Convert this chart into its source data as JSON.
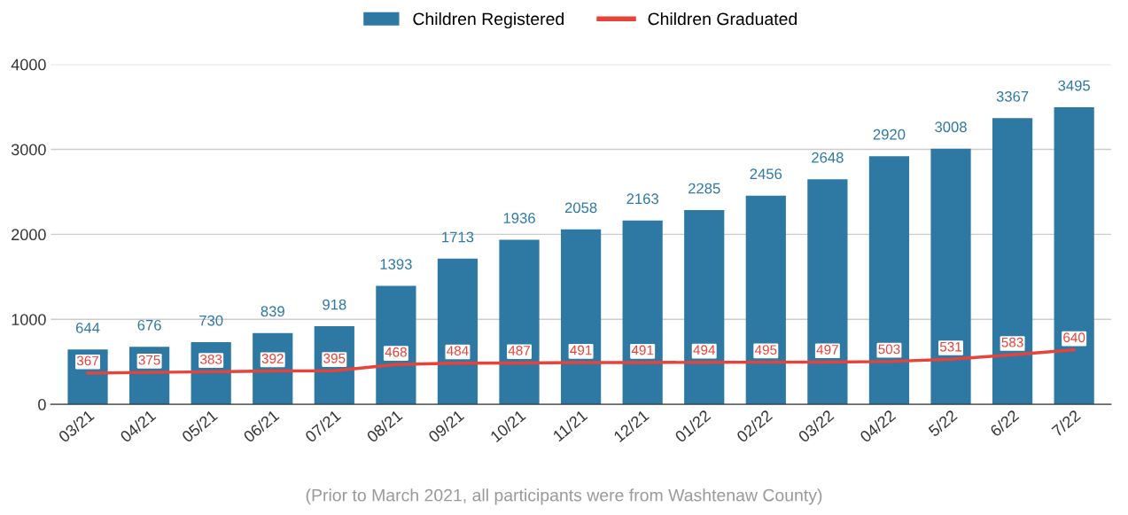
{
  "chart_data": {
    "type": "bar",
    "categories": [
      "03/21",
      "04/21",
      "05/21",
      "06/21",
      "07/21",
      "08/21",
      "09/21",
      "10/21",
      "11/21",
      "12/21",
      "01/22",
      "02/22",
      "03/22",
      "04/22",
      "5/22",
      "6/22",
      "7/22"
    ],
    "series": [
      {
        "name": "Children Registered",
        "color": "#2e78a4",
        "values": [
          644,
          676,
          730,
          839,
          918,
          1393,
          1713,
          1936,
          2058,
          2163,
          2285,
          2456,
          2648,
          2920,
          3008,
          3367,
          3495
        ]
      },
      {
        "name": "Children Graduated",
        "type": "line",
        "color": "#e8433a",
        "values": [
          367,
          375,
          383,
          392,
          395,
          468,
          484,
          487,
          491,
          491,
          494,
          495,
          497,
          503,
          531,
          583,
          640
        ]
      }
    ],
    "ylim": [
      0,
      4000
    ],
    "yticks": [
      0,
      1000,
      2000,
      3000,
      4000
    ],
    "grid": "y",
    "legend": "top",
    "data_labels": true,
    "marker": "none",
    "line_style": "solid",
    "annotations": [
      "(Prior to March 2021, all participants were from Washtenaw County)"
    ]
  }
}
